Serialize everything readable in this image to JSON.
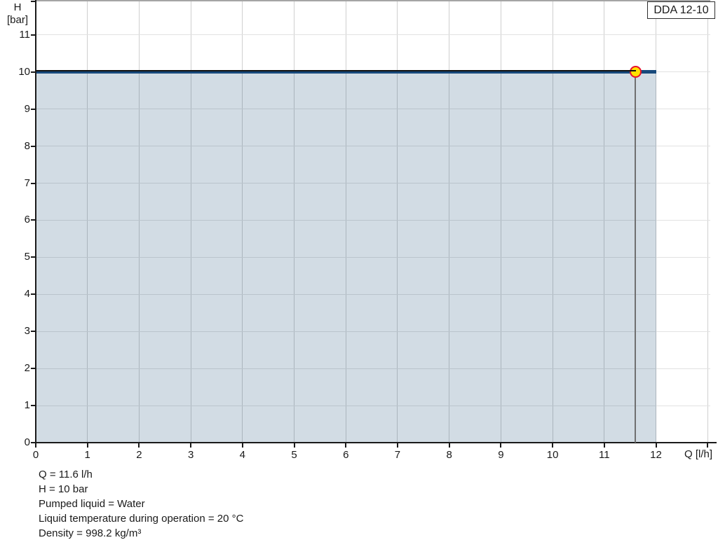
{
  "legend": {
    "label": "DDA 12-10"
  },
  "y_axis": {
    "title_line1": "H",
    "title_line2": "[bar]",
    "ticks": [
      0,
      1,
      2,
      3,
      4,
      5,
      6,
      7,
      8,
      9,
      10,
      11
    ]
  },
  "x_axis": {
    "title": "Q [l/h]",
    "ticks": [
      0,
      1,
      2,
      3,
      4,
      5,
      6,
      7,
      8,
      9,
      10,
      11,
      12
    ]
  },
  "duty_point": {
    "q": 11.6,
    "h": 10
  },
  "info_lines": [
    "Q = 11.6 l/h",
    "H = 10 bar",
    "Pumped liquid = Water",
    "Liquid temperature during operation = 20 °C",
    "Density = 998.2 kg/m³"
  ],
  "colors": {
    "curve": "#17497b",
    "area_fill": "rgba(31,78,121,0.20)",
    "duty_line": "#111111",
    "dropline": "#707070",
    "marker_fill": "#ffe100",
    "marker_border": "#e8112d",
    "grid_vertical": "#cfcfcf",
    "grid_horizontal": "#e2e2e2",
    "axis": "#1a1a1a"
  },
  "chart_data": {
    "type": "line",
    "title": "DDA 12-10 pump performance curve",
    "xlabel": "Q [l/h]",
    "ylabel": "H [bar]",
    "xlim": [
      0,
      13
    ],
    "ylim": [
      0,
      11.9
    ],
    "x_ticks": [
      0,
      1,
      2,
      3,
      4,
      5,
      6,
      7,
      8,
      9,
      10,
      11,
      12
    ],
    "y_ticks": [
      0,
      1,
      2,
      3,
      4,
      5,
      6,
      7,
      8,
      9,
      10,
      11
    ],
    "grid": true,
    "legend_position": "top-right",
    "series": [
      {
        "name": "DDA 12-10",
        "x": [
          0,
          12
        ],
        "y": [
          10,
          10
        ],
        "color": "#17497b",
        "area_fill_to_zero": true
      }
    ],
    "duty_point": {
      "x": 11.6,
      "y": 10,
      "marker": "circle-yellow-red-ring",
      "guide_lines": [
        "horizontal-from-y-axis",
        "vertical-to-x-axis"
      ]
    },
    "annotations": [
      "Q = 11.6 l/h",
      "H = 10 bar",
      "Pumped liquid = Water",
      "Liquid temperature during operation = 20 °C",
      "Density = 998.2 kg/m³"
    ]
  }
}
